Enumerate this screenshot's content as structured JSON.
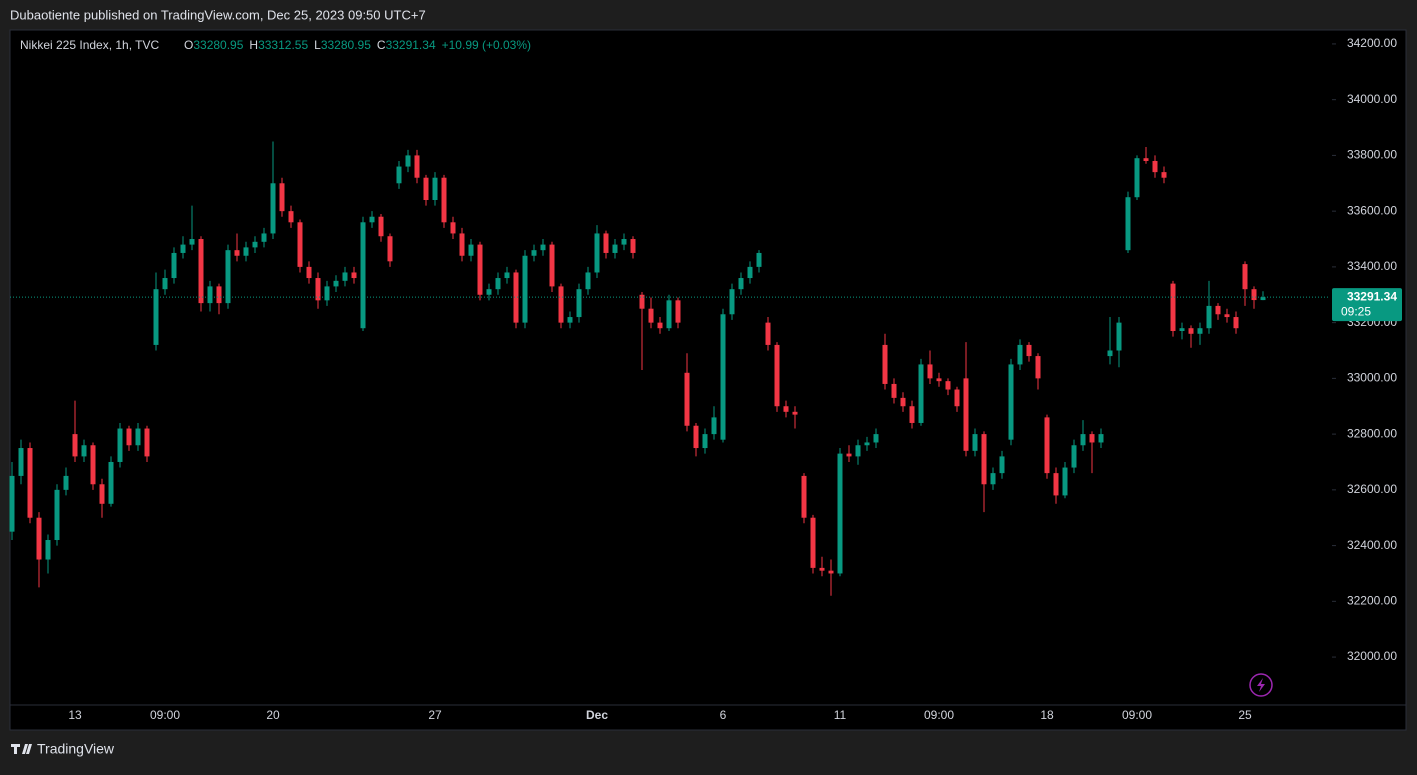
{
  "header": {
    "published": "Dubaotiente published on TradingView.com, Dec 25, 2023 09:50 UTC+7",
    "brand": "TradingView"
  },
  "chart_data": {
    "type": "candlestick",
    "title": "Nikkei 225 Index, 1h, TVC",
    "ohlc_labels": [
      "O",
      "H",
      "L",
      "C"
    ],
    "change": "+10.99 (+0.03%)",
    "countdown": "09:25",
    "up_color": "#089981",
    "down_color": "#f23645",
    "ylim": [
      31828,
      34250
    ],
    "yticks": [
      {
        "value": 32000,
        "label": "32000.00"
      },
      {
        "value": 32200,
        "label": "32200.00"
      },
      {
        "value": 32400,
        "label": "32400.00"
      },
      {
        "value": 32600,
        "label": "32600.00"
      },
      {
        "value": 32800,
        "label": "32800.00"
      },
      {
        "value": 33000,
        "label": "33000.00"
      },
      {
        "value": 33200,
        "label": "33200.00"
      },
      {
        "value": 33400,
        "label": "33400.00"
      },
      {
        "value": 33600,
        "label": "33600.00"
      },
      {
        "value": 33800,
        "label": "33800.00"
      },
      {
        "value": 34000,
        "label": "34000.00"
      },
      {
        "value": 34200,
        "label": "34200.00"
      }
    ],
    "categories": [
      null,
      null,
      null,
      null,
      null,
      null,
      null,
      "13",
      null,
      null,
      null,
      null,
      null,
      null,
      null,
      null,
      null,
      "09:00",
      null,
      null,
      null,
      null,
      null,
      null,
      null,
      null,
      null,
      null,
      null,
      "20",
      null,
      null,
      null,
      null,
      null,
      null,
      null,
      null,
      null,
      null,
      null,
      null,
      null,
      null,
      null,
      null,
      null,
      "27",
      null,
      null,
      null,
      null,
      null,
      null,
      null,
      null,
      null,
      null,
      null,
      null,
      null,
      null,
      null,
      null,
      null,
      "Dec",
      null,
      null,
      null,
      null,
      null,
      null,
      null,
      null,
      null,
      null,
      null,
      null,
      null,
      "6",
      null,
      null,
      null,
      null,
      null,
      null,
      null,
      null,
      null,
      null,
      null,
      null,
      "11",
      null,
      null,
      null,
      null,
      null,
      null,
      null,
      null,
      null,
      null,
      "09:00",
      null,
      null,
      null,
      null,
      null,
      null,
      null,
      null,
      null,
      null,
      null,
      "18",
      null,
      null,
      null,
      null,
      null,
      null,
      null,
      null,
      null,
      "09:00",
      null,
      null,
      null,
      null,
      null,
      null,
      null,
      null,
      null,
      null,
      null,
      "25",
      null,
      null
    ],
    "values": [
      [
        32450,
        32700,
        32420,
        32650
      ],
      [
        32650,
        32780,
        32620,
        32750
      ],
      [
        32750,
        32770,
        32480,
        32500
      ],
      [
        32500,
        32520,
        32250,
        32350
      ],
      [
        32350,
        32440,
        32300,
        32420
      ],
      [
        32420,
        32620,
        32400,
        32600
      ],
      [
        32600,
        32680,
        32580,
        32650
      ],
      [
        32800,
        32920,
        32700,
        32720
      ],
      [
        32720,
        32780,
        32700,
        32760
      ],
      [
        32760,
        32770,
        32600,
        32620
      ],
      [
        32620,
        32640,
        32500,
        32550
      ],
      [
        32550,
        32720,
        32540,
        32700
      ],
      [
        32700,
        32840,
        32680,
        32820
      ],
      [
        32820,
        32830,
        32740,
        32760
      ],
      [
        32760,
        32840,
        32740,
        32820
      ],
      [
        32820,
        32830,
        32700,
        32720
      ],
      [
        33120,
        33380,
        33100,
        33320
      ],
      [
        33320,
        33390,
        33300,
        33360
      ],
      [
        33360,
        33470,
        33340,
        33450
      ],
      [
        33450,
        33510,
        33430,
        33480
      ],
      [
        33480,
        33620,
        33460,
        33500
      ],
      [
        33500,
        33510,
        33240,
        33270
      ],
      [
        33270,
        33350,
        33240,
        33330
      ],
      [
        33330,
        33340,
        33230,
        33270
      ],
      [
        33270,
        33480,
        33250,
        33460
      ],
      [
        33460,
        33520,
        33420,
        33440
      ],
      [
        33440,
        33490,
        33420,
        33470
      ],
      [
        33470,
        33510,
        33450,
        33490
      ],
      [
        33490,
        33540,
        33470,
        33520
      ],
      [
        33520,
        33850,
        33500,
        33700
      ],
      [
        33700,
        33720,
        33580,
        33600
      ],
      [
        33600,
        33620,
        33540,
        33560
      ],
      [
        33560,
        33570,
        33380,
        33400
      ],
      [
        33400,
        33420,
        33340,
        33360
      ],
      [
        33360,
        33380,
        33250,
        33280
      ],
      [
        33280,
        33350,
        33260,
        33330
      ],
      [
        33330,
        33370,
        33310,
        33350
      ],
      [
        33350,
        33400,
        33330,
        33380
      ],
      [
        33380,
        33400,
        33340,
        33360
      ],
      [
        33180,
        33580,
        33170,
        33560
      ],
      [
        33560,
        33600,
        33540,
        33580
      ],
      [
        33580,
        33590,
        33490,
        33510
      ],
      [
        33510,
        33520,
        33400,
        33420
      ],
      [
        33700,
        33780,
        33680,
        33760
      ],
      [
        33760,
        33820,
        33740,
        33800
      ],
      [
        33800,
        33820,
        33700,
        33720
      ],
      [
        33720,
        33730,
        33620,
        33640
      ],
      [
        33640,
        33740,
        33620,
        33720
      ],
      [
        33720,
        33730,
        33540,
        33560
      ],
      [
        33560,
        33580,
        33500,
        33520
      ],
      [
        33520,
        33540,
        33420,
        33440
      ],
      [
        33440,
        33500,
        33420,
        33480
      ],
      [
        33480,
        33490,
        33280,
        33300
      ],
      [
        33300,
        33340,
        33280,
        33320
      ],
      [
        33320,
        33380,
        33300,
        33360
      ],
      [
        33360,
        33400,
        33340,
        33380
      ],
      [
        33380,
        33390,
        33180,
        33200
      ],
      [
        33200,
        33460,
        33180,
        33440
      ],
      [
        33440,
        33480,
        33420,
        33460
      ],
      [
        33460,
        33500,
        33440,
        33480
      ],
      [
        33480,
        33490,
        33310,
        33330
      ],
      [
        33330,
        33340,
        33180,
        33200
      ],
      [
        33200,
        33240,
        33180,
        33220
      ],
      [
        33220,
        33340,
        33200,
        33320
      ],
      [
        33320,
        33400,
        33300,
        33380
      ],
      [
        33380,
        33550,
        33360,
        33520
      ],
      [
        33520,
        33530,
        33430,
        33450
      ],
      [
        33450,
        33500,
        33430,
        33480
      ],
      [
        33480,
        33520,
        33460,
        33500
      ],
      [
        33500,
        33510,
        33430,
        33450
      ],
      [
        33300,
        33310,
        33030,
        33250
      ],
      [
        33250,
        33290,
        33180,
        33200
      ],
      [
        33200,
        33220,
        33160,
        33180
      ],
      [
        33180,
        33300,
        33170,
        33280
      ],
      [
        33280,
        33290,
        33180,
        33200
      ],
      [
        33020,
        33090,
        32810,
        32830
      ],
      [
        32830,
        32840,
        32720,
        32750
      ],
      [
        32750,
        32820,
        32730,
        32800
      ],
      [
        32800,
        32900,
        32780,
        32860
      ],
      [
        32780,
        33250,
        32770,
        33230
      ],
      [
        33230,
        33340,
        33210,
        33320
      ],
      [
        33320,
        33380,
        33300,
        33360
      ],
      [
        33360,
        33420,
        33340,
        33400
      ],
      [
        33400,
        33460,
        33380,
        33450
      ],
      [
        33200,
        33220,
        33100,
        33120
      ],
      [
        33120,
        33130,
        32880,
        32900
      ],
      [
        32900,
        32920,
        32860,
        32880
      ],
      [
        32880,
        32900,
        32820,
        32870
      ],
      [
        32650,
        32660,
        32480,
        32500
      ],
      [
        32500,
        32510,
        32300,
        32320
      ],
      [
        32320,
        32360,
        32290,
        32310
      ],
      [
        32310,
        32350,
        32220,
        32300
      ],
      [
        32300,
        32750,
        32290,
        32730
      ],
      [
        32730,
        32760,
        32700,
        32720
      ],
      [
        32720,
        32780,
        32690,
        32760
      ],
      [
        32760,
        32790,
        32740,
        32770
      ],
      [
        32770,
        32820,
        32750,
        32800
      ],
      [
        33120,
        33160,
        32960,
        32980
      ],
      [
        32980,
        33000,
        32910,
        32930
      ],
      [
        32930,
        32950,
        32880,
        32900
      ],
      [
        32900,
        32920,
        32820,
        32840
      ],
      [
        32840,
        33070,
        32830,
        33050
      ],
      [
        33050,
        33100,
        32980,
        33000
      ],
      [
        33000,
        33020,
        32970,
        32990
      ],
      [
        32990,
        33000,
        32940,
        32960
      ],
      [
        32960,
        32970,
        32880,
        32900
      ],
      [
        33000,
        33130,
        32720,
        32740
      ],
      [
        32740,
        32820,
        32720,
        32800
      ],
      [
        32800,
        32810,
        32520,
        32620
      ],
      [
        32620,
        32680,
        32600,
        32660
      ],
      [
        32660,
        32740,
        32640,
        32720
      ],
      [
        32780,
        33070,
        32760,
        33050
      ],
      [
        33050,
        33140,
        33030,
        33120
      ],
      [
        33120,
        33130,
        33060,
        33080
      ],
      [
        33080,
        33090,
        32960,
        33000
      ],
      [
        32860,
        32870,
        32640,
        32660
      ],
      [
        32660,
        32680,
        32550,
        32580
      ],
      [
        32580,
        32700,
        32570,
        32680
      ],
      [
        32680,
        32780,
        32660,
        32760
      ],
      [
        32760,
        32850,
        32740,
        32800
      ],
      [
        32800,
        32810,
        32660,
        32770
      ],
      [
        32770,
        32820,
        32750,
        32800
      ],
      [
        33080,
        33220,
        33050,
        33100
      ],
      [
        33100,
        33220,
        33040,
        33200
      ],
      [
        33460,
        33670,
        33450,
        33650
      ],
      [
        33650,
        33800,
        33640,
        33790
      ],
      [
        33790,
        33830,
        33770,
        33780
      ],
      [
        33780,
        33800,
        33720,
        33740
      ],
      [
        33740,
        33760,
        33700,
        33720
      ],
      [
        33340,
        33350,
        33150,
        33170
      ],
      [
        33170,
        33200,
        33140,
        33180
      ],
      [
        33180,
        33190,
        33110,
        33160
      ],
      [
        33160,
        33200,
        33120,
        33180
      ],
      [
        33180,
        33350,
        33160,
        33260
      ],
      [
        33260,
        33270,
        33210,
        33230
      ],
      [
        33230,
        33250,
        33200,
        33220
      ],
      [
        33220,
        33240,
        33160,
        33180
      ],
      [
        33410,
        33420,
        33260,
        33320
      ],
      [
        33320,
        33330,
        33250,
        33281
      ],
      [
        33280.95,
        33312.55,
        33280.95,
        33291.34
      ]
    ]
  }
}
